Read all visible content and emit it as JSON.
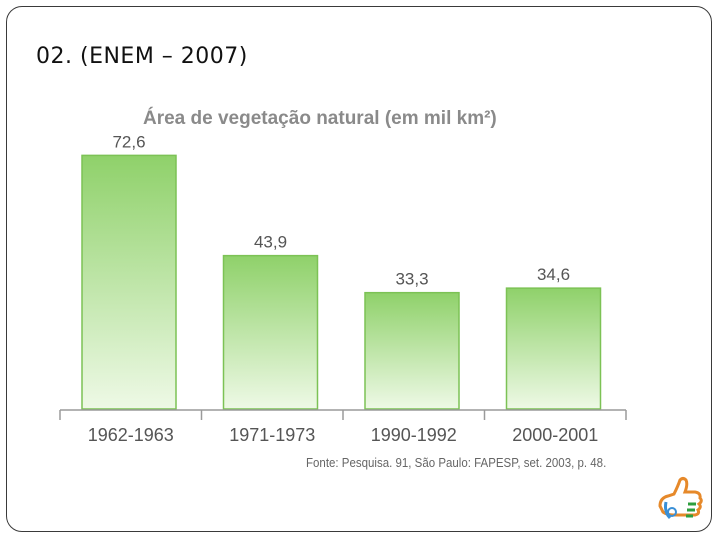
{
  "slide": {
    "heading": "02. (ENEM – 2007)"
  },
  "chart_data": {
    "type": "bar",
    "title": "Área de vegetação natural (em mil km²)",
    "categories": [
      "1962-1963",
      "1971-1973",
      "1990-1992",
      "2000-2001"
    ],
    "values": [
      72.6,
      43.9,
      33.3,
      34.6
    ],
    "value_labels": [
      "72,6",
      "43,9",
      "33,3",
      "34,6"
    ],
    "ylim": [
      0,
      75
    ],
    "grid": false,
    "bar_color_top": "#8fd16a",
    "bar_color_bottom": "#eef9e6",
    "bar_border": "#7cc255",
    "source": "Fonte: Pesquisa. 91, São Paulo: FAPESP, set. 2003, p. 48."
  },
  "logo": {
    "icon": "thumbs-up-logo-icon"
  }
}
